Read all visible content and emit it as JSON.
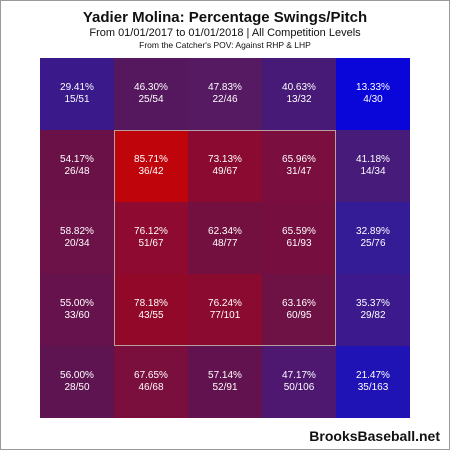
{
  "chart_data": {
    "type": "heatmap",
    "title": "Yadier Molina: Percentage Swings/Pitch",
    "subtitle": "From 01/01/2017 to 01/01/2018 | All Competition Levels",
    "note": "From the Catcher's POV:  Against RHP & LHP",
    "credit": "BrooksBaseball.net",
    "rows": 5,
    "cols": 5,
    "cells": [
      [
        {
          "pct": "29.41%",
          "count": "15/51"
        },
        {
          "pct": "46.30%",
          "count": "25/54"
        },
        {
          "pct": "47.83%",
          "count": "22/46"
        },
        {
          "pct": "40.63%",
          "count": "13/32"
        },
        {
          "pct": "13.33%",
          "count": "4/30"
        }
      ],
      [
        {
          "pct": "54.17%",
          "count": "26/48"
        },
        {
          "pct": "85.71%",
          "count": "36/42"
        },
        {
          "pct": "73.13%",
          "count": "49/67"
        },
        {
          "pct": "65.96%",
          "count": "31/47"
        },
        {
          "pct": "41.18%",
          "count": "14/34"
        }
      ],
      [
        {
          "pct": "58.82%",
          "count": "20/34"
        },
        {
          "pct": "76.12%",
          "count": "51/67"
        },
        {
          "pct": "62.34%",
          "count": "48/77"
        },
        {
          "pct": "65.59%",
          "count": "61/93"
        },
        {
          "pct": "32.89%",
          "count": "25/76"
        }
      ],
      [
        {
          "pct": "55.00%",
          "count": "33/60"
        },
        {
          "pct": "78.18%",
          "count": "43/55"
        },
        {
          "pct": "76.24%",
          "count": "77/101"
        },
        {
          "pct": "63.16%",
          "count": "60/95"
        },
        {
          "pct": "35.37%",
          "count": "29/82"
        }
      ],
      [
        {
          "pct": "56.00%",
          "count": "28/50"
        },
        {
          "pct": "67.65%",
          "count": "46/68"
        },
        {
          "pct": "57.14%",
          "count": "52/91"
        },
        {
          "pct": "47.17%",
          "count": "50/106"
        },
        {
          "pct": "21.47%",
          "count": "35/163"
        }
      ]
    ],
    "colors": [
      [
        "#3a1a8a",
        "#55185f",
        "#551a62",
        "#481a78",
        "#0a05d8"
      ],
      [
        "#6a1248",
        "#c0040c",
        "#8a0a32",
        "#7a0e3e",
        "#461b7a"
      ],
      [
        "#6c1248",
        "#8e0a30",
        "#74103f",
        "#760e40",
        "#341c96"
      ],
      [
        "#66134d",
        "#920828",
        "#8a0a30",
        "#6e1246",
        "#3c1a8e"
      ],
      [
        "#5f1452",
        "#7a0e3c",
        "#62124e",
        "#4e1870",
        "#2013b6"
      ]
    ]
  }
}
